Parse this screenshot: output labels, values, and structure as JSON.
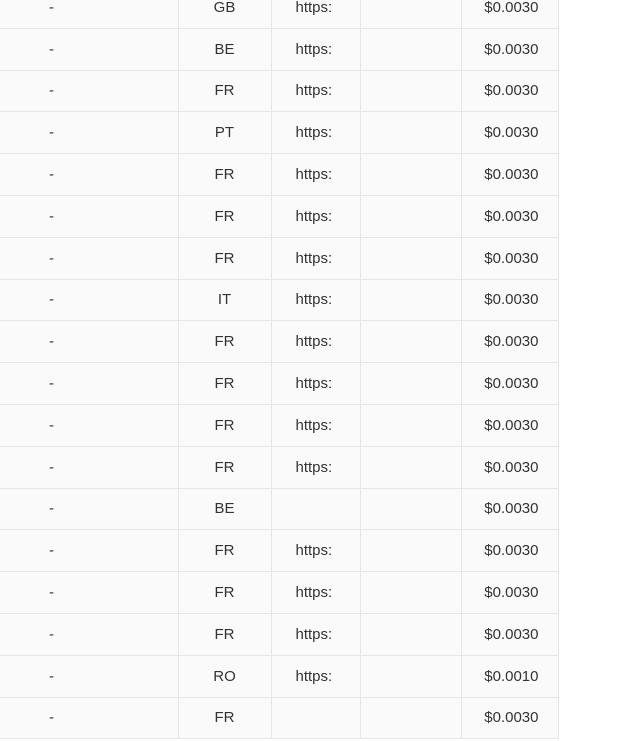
{
  "table": {
    "rows": [
      {
        "col1": "-",
        "country": "GB",
        "url": "https:",
        "col4": "",
        "price": "$0.0030"
      },
      {
        "col1": "-",
        "country": "BE",
        "url": "https:",
        "col4": "",
        "price": "$0.0030"
      },
      {
        "col1": "-",
        "country": "FR",
        "url": "https:",
        "col4": "",
        "price": "$0.0030"
      },
      {
        "col1": "-",
        "country": "PT",
        "url": "https:",
        "col4": "",
        "price": "$0.0030"
      },
      {
        "col1": "-",
        "country": "FR",
        "url": "https:",
        "col4": "",
        "price": "$0.0030"
      },
      {
        "col1": "-",
        "country": "FR",
        "url": "https:",
        "col4": "",
        "price": "$0.0030"
      },
      {
        "col1": "-",
        "country": "FR",
        "url": "https:",
        "col4": "",
        "price": "$0.0030"
      },
      {
        "col1": "-",
        "country": "IT",
        "url": "https:",
        "col4": "",
        "price": "$0.0030"
      },
      {
        "col1": "-",
        "country": "FR",
        "url": "https:",
        "col4": "",
        "price": "$0.0030"
      },
      {
        "col1": "-",
        "country": "FR",
        "url": "https:",
        "col4": "",
        "price": "$0.0030"
      },
      {
        "col1": "-",
        "country": "FR",
        "url": "https:",
        "col4": "",
        "price": "$0.0030"
      },
      {
        "col1": "-",
        "country": "FR",
        "url": "https:",
        "col4": "",
        "price": "$0.0030"
      },
      {
        "col1": "-",
        "country": "BE",
        "url": "",
        "col4": "",
        "price": "$0.0030"
      },
      {
        "col1": "-",
        "country": "FR",
        "url": "https:",
        "col4": "",
        "price": "$0.0030"
      },
      {
        "col1": "-",
        "country": "FR",
        "url": "https:",
        "col4": "",
        "price": "$0.0030"
      },
      {
        "col1": "-",
        "country": "FR",
        "url": "https:",
        "col4": "",
        "price": "$0.0030"
      },
      {
        "col1": "-",
        "country": "RO",
        "url": "https:",
        "col4": "",
        "price": "$0.0010"
      },
      {
        "col1": "-",
        "country": "FR",
        "url": "",
        "col4": "",
        "price": "$0.0030"
      }
    ]
  }
}
